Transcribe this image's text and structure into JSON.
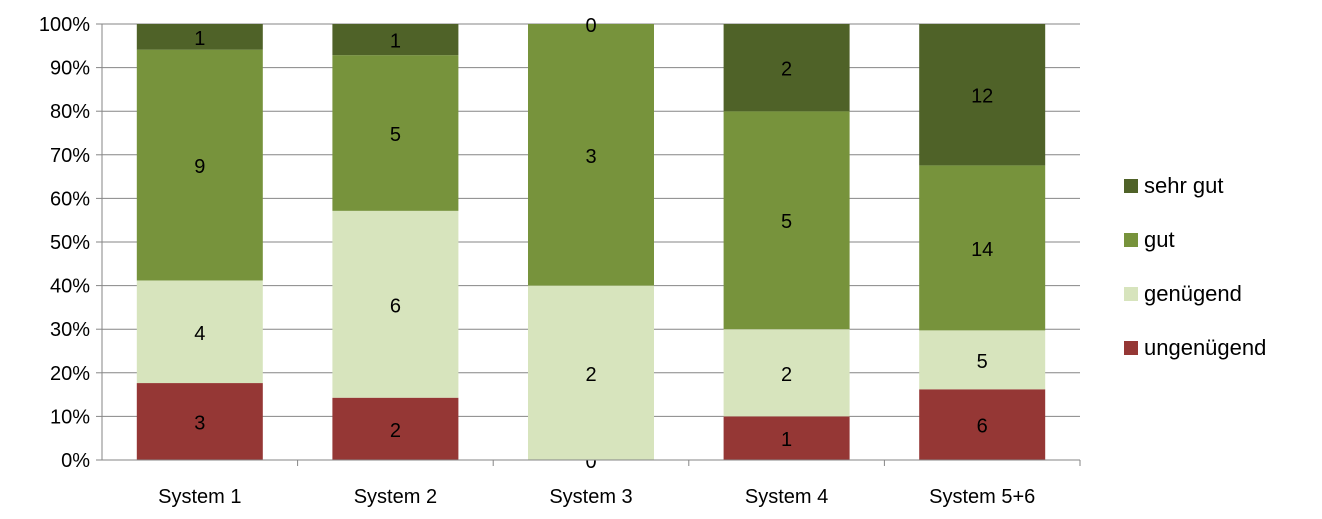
{
  "chart_data": {
    "type": "bar",
    "stacked": true,
    "normalized": true,
    "categories": [
      "System 1",
      "System 2",
      "System 3",
      "System 4",
      "System 5+6"
    ],
    "series": [
      {
        "name": "ungenügend",
        "color": "#953735",
        "values": [
          3,
          2,
          0,
          1,
          6
        ]
      },
      {
        "name": "genügend",
        "color": "#D7E4BD",
        "values": [
          4,
          6,
          2,
          2,
          5
        ]
      },
      {
        "name": "gut",
        "color": "#77933C",
        "values": [
          9,
          5,
          3,
          5,
          14
        ]
      },
      {
        "name": "sehr gut",
        "color": "#4F6228",
        "values": [
          1,
          1,
          0,
          2,
          12
        ]
      }
    ],
    "y_ticks": [
      "0%",
      "10%",
      "20%",
      "30%",
      "40%",
      "50%",
      "60%",
      "70%",
      "80%",
      "90%",
      "100%"
    ],
    "ylim": [
      0,
      100
    ],
    "grid": true,
    "legend_position": "right",
    "legend_order": [
      "sehr gut",
      "gut",
      "genügend",
      "ungenügend"
    ]
  }
}
